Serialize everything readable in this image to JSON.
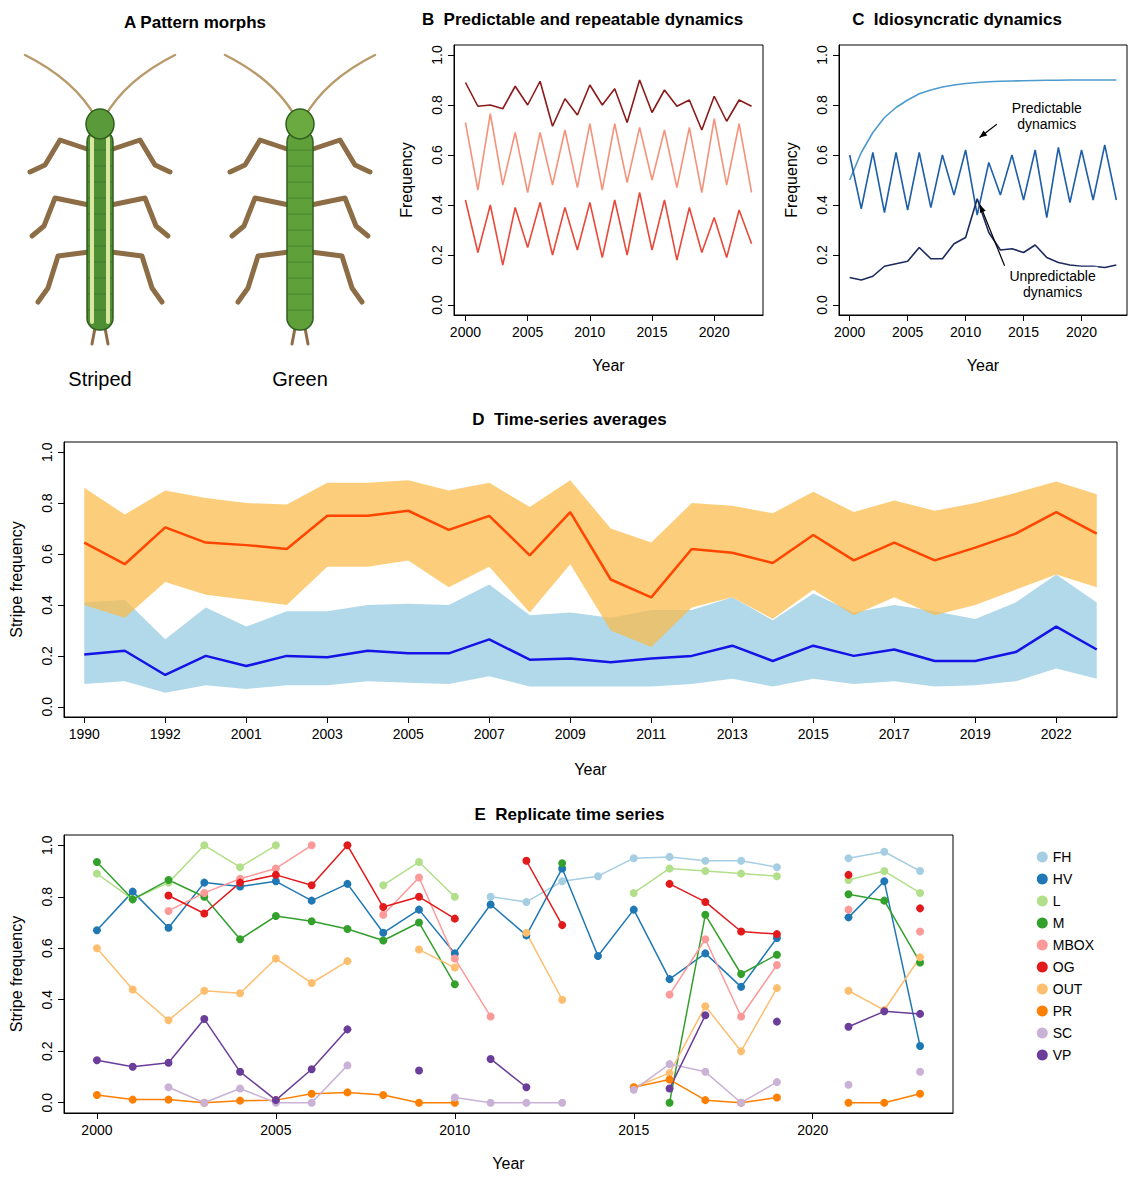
{
  "illustration": {
    "panel": "A",
    "title": "Pattern morphs",
    "morphs": [
      "Striped",
      "Green"
    ]
  },
  "chart_data": [
    {
      "type": "line",
      "panel": "B",
      "title": "Predictable and repeatable dynamics",
      "x": [
        2000,
        2001,
        2002,
        2003,
        2004,
        2005,
        2006,
        2007,
        2008,
        2009,
        2010,
        2011,
        2012,
        2013,
        2014,
        2015,
        2016,
        2017,
        2018,
        2019,
        2020,
        2021,
        2022,
        2023
      ],
      "xlim": [
        1999.08,
        2023.92
      ],
      "xticks": [
        2000,
        2005,
        2010,
        2015,
        2020
      ],
      "ylim": [
        -0.04,
        1.04
      ],
      "yticks": [
        {
          "value": 0,
          "label": "0.0"
        },
        {
          "value": 0.2,
          "label": "0.2"
        },
        {
          "value": 0.4,
          "label": "0.4"
        },
        {
          "value": 0.6,
          "label": "0.6"
        },
        {
          "value": 0.8,
          "label": "0.8"
        },
        {
          "value": 1,
          "label": "1.0"
        }
      ],
      "x_label": "Year",
      "y_label": "Frequency",
      "grid": false,
      "series": [
        {
          "color": "#8b1a1a",
          "values": [
            0.89,
            0.795,
            0.8,
            0.785,
            0.875,
            0.8,
            0.895,
            0.715,
            0.825,
            0.76,
            0.88,
            0.8,
            0.865,
            0.73,
            0.9,
            0.77,
            0.86,
            0.795,
            0.82,
            0.7,
            0.835,
            0.735,
            0.82,
            0.795
          ]
        },
        {
          "color": "#f4937c",
          "values": [
            0.73,
            0.46,
            0.765,
            0.48,
            0.69,
            0.45,
            0.69,
            0.48,
            0.7,
            0.47,
            0.725,
            0.46,
            0.725,
            0.49,
            0.71,
            0.5,
            0.7,
            0.47,
            0.71,
            0.45,
            0.745,
            0.48,
            0.725,
            0.45
          ]
        },
        {
          "color": "#e8493a",
          "values": [
            0.42,
            0.21,
            0.4,
            0.16,
            0.39,
            0.23,
            0.41,
            0.2,
            0.39,
            0.22,
            0.41,
            0.19,
            0.42,
            0.2,
            0.45,
            0.22,
            0.42,
            0.18,
            0.39,
            0.21,
            0.35,
            0.19,
            0.38,
            0.245
          ]
        }
      ]
    },
    {
      "type": "line",
      "panel": "C",
      "title": "Idiosyncratic dynamics",
      "x": [
        2000,
        2001,
        2002,
        2003,
        2004,
        2005,
        2006,
        2007,
        2008,
        2009,
        2010,
        2011,
        2012,
        2013,
        2014,
        2015,
        2016,
        2017,
        2018,
        2019,
        2020,
        2021,
        2022,
        2023
      ],
      "xlim": [
        1999.08,
        2023.92
      ],
      "xticks": [
        2000,
        2005,
        2010,
        2015,
        2020
      ],
      "ylim": [
        -0.04,
        1.04
      ],
      "yticks": [
        {
          "value": 0,
          "label": "0.0"
        },
        {
          "value": 0.2,
          "label": "0.2"
        },
        {
          "value": 0.4,
          "label": "0.4"
        },
        {
          "value": 0.6,
          "label": "0.6"
        },
        {
          "value": 0.8,
          "label": "0.8"
        },
        {
          "value": 1,
          "label": "1.0"
        }
      ],
      "x_label": "Year",
      "y_label": "Frequency",
      "grid": false,
      "annotations": [
        "Predictable dynamics",
        "Unpredictable dynamics"
      ],
      "series": [
        {
          "color": "#4e9bcd",
          "values": [
            0.5,
            0.61,
            0.69,
            0.75,
            0.79,
            0.82,
            0.845,
            0.86,
            0.872,
            0.88,
            0.886,
            0.89,
            0.893,
            0.895,
            0.896,
            0.897,
            0.898,
            0.899,
            0.899,
            0.9,
            0.9,
            0.9,
            0.9,
            0.9
          ]
        },
        {
          "color": "#1f5fa8",
          "values": [
            0.6,
            0.385,
            0.61,
            0.37,
            0.61,
            0.38,
            0.61,
            0.39,
            0.6,
            0.44,
            0.62,
            0.36,
            0.57,
            0.44,
            0.6,
            0.42,
            0.62,
            0.35,
            0.63,
            0.41,
            0.62,
            0.42,
            0.64,
            0.42
          ]
        },
        {
          "color": "#1a2a5e",
          "values": [
            0.11,
            0.1,
            0.115,
            0.155,
            0.165,
            0.175,
            0.23,
            0.185,
            0.185,
            0.245,
            0.27,
            0.425,
            0.29,
            0.22,
            0.225,
            0.21,
            0.24,
            0.19,
            0.17,
            0.16,
            0.155,
            0.155,
            0.15,
            0.16
          ]
        }
      ]
    },
    {
      "type": "line",
      "panel": "D",
      "title": "Time-series averages",
      "categories": [
        "1990",
        null,
        "1992",
        null,
        "2001",
        null,
        "2003",
        null,
        "2005",
        null,
        "2007",
        null,
        "2009",
        null,
        "2011",
        null,
        "2013",
        null,
        "2015",
        null,
        "2017",
        null,
        "2019",
        null,
        "2022",
        null
      ],
      "ylim": [
        -0.04,
        1.04
      ],
      "yticks": [
        {
          "value": 0,
          "label": "0.0"
        },
        {
          "value": 0.2,
          "label": "0.2"
        },
        {
          "value": 0.4,
          "label": "0.4"
        },
        {
          "value": 0.6,
          "label": "0.6"
        },
        {
          "value": 0.8,
          "label": "0.8"
        },
        {
          "value": 1,
          "label": "1.0"
        }
      ],
      "x_label": "Year",
      "y_label": "Stripe frequency",
      "grid": false,
      "series": [
        {
          "color": "#ff4500",
          "values": [
            0.645,
            0.56,
            0.705,
            0.645,
            0.635,
            0.62,
            0.75,
            0.75,
            0.77,
            0.695,
            0.75,
            0.595,
            0.765,
            0.5,
            0.43,
            0.62,
            0.605,
            0.565,
            0.675,
            0.575,
            0.645,
            0.575,
            0.625,
            0.68,
            0.765,
            0.68
          ],
          "lower": [
            0.4,
            0.35,
            0.49,
            0.44,
            0.42,
            0.4,
            0.55,
            0.55,
            0.575,
            0.47,
            0.55,
            0.37,
            0.56,
            0.3,
            0.235,
            0.39,
            0.43,
            0.345,
            0.46,
            0.36,
            0.43,
            0.36,
            0.4,
            0.46,
            0.52,
            0.47
          ],
          "upper": [
            0.86,
            0.755,
            0.85,
            0.82,
            0.8,
            0.795,
            0.88,
            0.88,
            0.89,
            0.85,
            0.88,
            0.785,
            0.89,
            0.7,
            0.645,
            0.8,
            0.79,
            0.76,
            0.845,
            0.765,
            0.81,
            0.77,
            0.8,
            0.84,
            0.885,
            0.835
          ]
        },
        {
          "color": "#1414e6",
          "values": [
            0.205,
            0.22,
            0.125,
            0.2,
            0.16,
            0.2,
            0.195,
            0.22,
            0.21,
            0.21,
            0.265,
            0.185,
            0.19,
            0.175,
            0.19,
            0.2,
            0.24,
            0.18,
            0.24,
            0.2,
            0.225,
            0.18,
            0.18,
            0.215,
            0.315,
            0.225
          ],
          "lower": [
            0.09,
            0.1,
            0.055,
            0.085,
            0.07,
            0.085,
            0.085,
            0.1,
            0.095,
            0.09,
            0.12,
            0.08,
            0.08,
            0.08,
            0.08,
            0.09,
            0.11,
            0.08,
            0.11,
            0.09,
            0.1,
            0.08,
            0.085,
            0.1,
            0.15,
            0.11
          ],
          "upper": [
            0.41,
            0.42,
            0.265,
            0.39,
            0.315,
            0.375,
            0.375,
            0.4,
            0.405,
            0.4,
            0.48,
            0.36,
            0.37,
            0.35,
            0.38,
            0.38,
            0.43,
            0.34,
            0.445,
            0.37,
            0.4,
            0.375,
            0.345,
            0.41,
            0.52,
            0.41
          ]
        }
      ]
    },
    {
      "type": "line",
      "panel": "E",
      "title": "Replicate time series",
      "marker": "circle",
      "legend": "right",
      "x": [
        2000,
        2001,
        2002,
        2003,
        2004,
        2005,
        2006,
        2007,
        2008,
        2009,
        2010,
        2011,
        2012,
        2013,
        2014,
        2015,
        2016,
        2017,
        2018,
        2019,
        2020,
        2021,
        2022,
        2023
      ],
      "xlim": [
        1999.08,
        2023.92
      ],
      "xticks": [
        2000,
        2005,
        2010,
        2015,
        2020
      ],
      "ylim": [
        -0.04,
        1.04
      ],
      "yticks": [
        {
          "value": 0,
          "label": "0.0"
        },
        {
          "value": 0.2,
          "label": "0.2"
        },
        {
          "value": 0.4,
          "label": "0.4"
        },
        {
          "value": 0.6,
          "label": "0.6"
        },
        {
          "value": 0.8,
          "label": "0.8"
        },
        {
          "value": 1,
          "label": "1.0"
        }
      ],
      "x_label": "Year",
      "y_label": "Stripe frequency",
      "grid": false,
      "series": [
        {
          "name": "FH",
          "color": "#a6cee3",
          "values": [
            null,
            null,
            null,
            null,
            null,
            null,
            null,
            null,
            null,
            null,
            null,
            0.8,
            0.78,
            0.86,
            0.88,
            0.95,
            0.955,
            0.94,
            0.94,
            0.915,
            null,
            0.95,
            0.975,
            0.9
          ]
        },
        {
          "name": "HV",
          "color": "#1f78b4",
          "values": [
            0.67,
            0.82,
            0.68,
            0.855,
            0.84,
            0.86,
            0.785,
            0.85,
            0.66,
            0.75,
            0.58,
            0.77,
            0.65,
            0.91,
            0.57,
            0.75,
            0.48,
            0.58,
            0.45,
            0.64,
            null,
            0.72,
            0.86,
            0.22
          ]
        },
        {
          "name": "L",
          "color": "#b2df8a",
          "values": [
            0.89,
            0.79,
            0.855,
            1.0,
            0.915,
            1.0,
            null,
            null,
            0.845,
            0.935,
            0.8,
            null,
            null,
            null,
            null,
            0.815,
            0.91,
            0.9,
            0.89,
            0.88,
            null,
            0.865,
            0.9,
            0.815
          ]
        },
        {
          "name": "M",
          "color": "#33a02c",
          "values": [
            0.935,
            0.79,
            0.865,
            0.8,
            0.635,
            0.725,
            0.705,
            0.675,
            0.63,
            0.7,
            0.46,
            null,
            null,
            0.93,
            null,
            null,
            0.0,
            0.73,
            0.5,
            0.575,
            null,
            0.81,
            0.785,
            0.545
          ]
        },
        {
          "name": "MBOX",
          "color": "#fb9a99",
          "values": [
            null,
            null,
            0.745,
            0.815,
            0.87,
            0.91,
            1.0,
            null,
            0.73,
            0.875,
            0.56,
            0.335,
            null,
            null,
            null,
            null,
            0.42,
            0.635,
            0.335,
            0.535,
            null,
            0.75,
            null,
            0.665
          ]
        },
        {
          "name": "OG",
          "color": "#e31a1c",
          "values": [
            null,
            null,
            0.805,
            0.735,
            0.855,
            0.885,
            0.845,
            1.0,
            0.76,
            0.8,
            0.715,
            null,
            0.94,
            0.69,
            null,
            null,
            0.85,
            0.78,
            0.665,
            0.655,
            null,
            0.885,
            null,
            0.755
          ]
        },
        {
          "name": "OUT",
          "color": "#fdbf6f",
          "values": [
            0.6,
            0.44,
            0.32,
            0.435,
            0.425,
            0.56,
            0.465,
            0.55,
            null,
            0.595,
            0.525,
            null,
            0.66,
            0.4,
            null,
            0.06,
            0.115,
            0.375,
            0.2,
            0.445,
            null,
            0.435,
            0.36,
            0.565
          ]
        },
        {
          "name": "PR",
          "color": "#ff7f00",
          "values": [
            0.03,
            0.012,
            0.012,
            0.0,
            0.008,
            0.01,
            0.035,
            0.04,
            0.03,
            0.0,
            0.0,
            null,
            null,
            null,
            null,
            0.06,
            0.09,
            0.01,
            0.0,
            0.02,
            null,
            0.0,
            0.0,
            0.035
          ]
        },
        {
          "name": "SC",
          "color": "#cab2d6",
          "values": [
            null,
            null,
            0.06,
            0.0,
            0.055,
            0.0,
            0.0,
            0.145,
            null,
            null,
            0.02,
            0.0,
            0.0,
            0.0,
            null,
            0.05,
            0.15,
            0.12,
            0.0,
            0.08,
            null,
            0.07,
            null,
            0.12
          ]
        },
        {
          "name": "VP",
          "color": "#6a3d9a",
          "values": [
            0.165,
            0.14,
            0.155,
            0.325,
            0.12,
            0.01,
            0.13,
            0.285,
            null,
            0.125,
            null,
            0.17,
            0.06,
            null,
            null,
            null,
            0.055,
            0.34,
            null,
            0.315,
            null,
            0.295,
            0.355,
            0.345
          ]
        }
      ]
    }
  ]
}
